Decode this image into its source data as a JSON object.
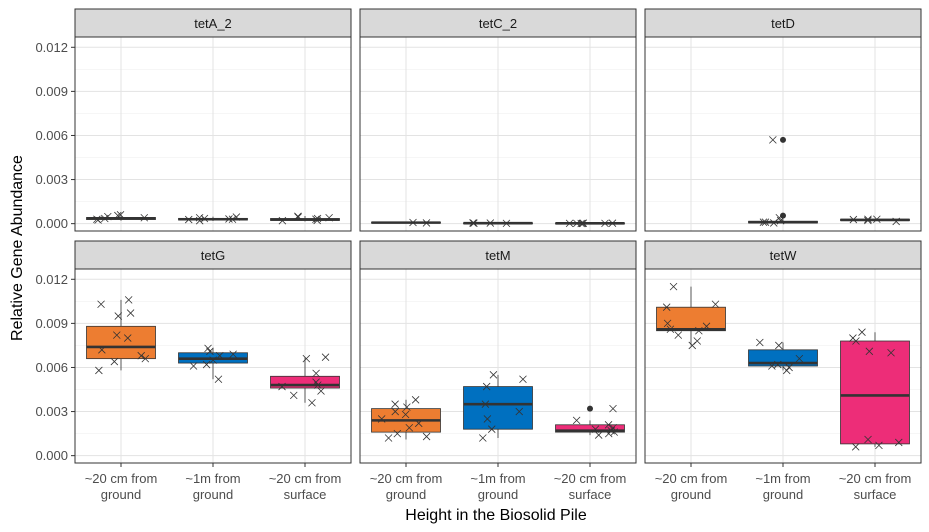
{
  "chart_data": {
    "type": "box",
    "xlabel": "Height in the Biosolid Pile",
    "ylabel": "Relative Gene Abundance",
    "categories": [
      "~20 cm from\nground",
      "~1m from\nground",
      "~20 cm from\nsurface"
    ],
    "ylim": [
      -0.0005,
      0.0127
    ],
    "yticks": [
      0.0,
      0.003,
      0.006,
      0.009,
      0.012
    ],
    "ytick_labels": [
      "0.000",
      "0.003",
      "0.006",
      "0.009",
      "0.012"
    ],
    "grid": true,
    "colors": {
      "~20 cm from ground": "#ed7d31",
      "~1m from ground": "#0070c0",
      "~20 cm from surface": "#ed2d78"
    },
    "panels": [
      {
        "name": "tetA_2",
        "boxes": [
          {
            "q1": 0.00028,
            "median": 0.00036,
            "q3": 0.00042,
            "whisker_low": 0.0002,
            "whisker_high": 0.0006,
            "outliers": []
          },
          {
            "q1": 0.00025,
            "median": 0.0003,
            "q3": 0.00036,
            "whisker_low": 0.00018,
            "whisker_high": 0.00048,
            "outliers": []
          },
          {
            "q1": 0.00022,
            "median": 0.00028,
            "q3": 0.00035,
            "whisker_low": 0.00015,
            "whisker_high": 0.00052,
            "outliers": []
          }
        ],
        "points": [
          [
            0.00055,
            0.0006,
            0.00048,
            0.0003,
            0.00035,
            0.00025,
            0.0004
          ],
          [
            0.0004,
            0.00035,
            0.00028,
            0.00045,
            0.00032,
            0.0002,
            0.0003
          ],
          [
            0.00045,
            0.0005,
            0.0003,
            0.00022,
            0.00035,
            0.0002,
            0.0004
          ]
        ]
      },
      {
        "name": "tetC_2",
        "boxes": [
          {
            "q1": 4e-05,
            "median": 7e-05,
            "q3": 0.0001,
            "whisker_low": 2e-05,
            "whisker_high": 0.00012,
            "outliers": []
          },
          {
            "q1": 1e-05,
            "median": 3e-05,
            "q3": 5e-05,
            "whisker_low": 0.0,
            "whisker_high": 8e-05,
            "outliers": []
          },
          {
            "q1": 1e-05,
            "median": 2e-05,
            "q3": 4e-05,
            "whisker_low": 0.0,
            "whisker_high": 6e-05,
            "outliers": []
          }
        ],
        "points": [
          [
            8e-05,
            5e-05
          ],
          [
            3e-05,
            4e-05,
            5e-05,
            2e-05
          ],
          [
            2e-05,
            3e-05,
            1e-05,
            2e-05,
            3e-05,
            2e-05,
            1e-05
          ]
        ]
      },
      {
        "name": "tetD",
        "boxes": [
          {
            "q1": null,
            "median": null,
            "q3": null,
            "whisker_low": null,
            "whisker_high": null,
            "outliers": []
          },
          {
            "q1": 5e-05,
            "median": 0.0001,
            "q3": 0.00016,
            "whisker_low": 0.0,
            "whisker_high": 0.0003,
            "outliers": [
              0.0057,
              0.00055
            ]
          },
          {
            "q1": 0.00021,
            "median": 0.00025,
            "q3": 0.0003,
            "whisker_low": 0.00018,
            "whisker_high": 0.0003,
            "outliers": []
          }
        ],
        "points": [
          [],
          [
            0.0057,
            0.0004,
            0.0002,
            0.0001,
            0.0001,
            5e-05
          ],
          [
            0.0003,
            0.00028,
            0.00022,
            0.0003,
            0.00015
          ]
        ]
      },
      {
        "name": "tetG",
        "boxes": [
          {
            "q1": 0.0066,
            "median": 0.0074,
            "q3": 0.0088,
            "whisker_low": 0.0058,
            "whisker_high": 0.0106,
            "outliers": []
          },
          {
            "q1": 0.0063,
            "median": 0.0066,
            "q3": 0.007,
            "whisker_low": 0.0052,
            "whisker_high": 0.0073,
            "outliers": []
          },
          {
            "q1": 0.0046,
            "median": 0.0048,
            "q3": 0.0054,
            "whisker_low": 0.0036,
            "whisker_high": 0.0067,
            "outliers": []
          }
        ],
        "points": [
          [
            0.0106,
            0.0103,
            0.0097,
            0.0095,
            0.0082,
            0.008,
            0.0072,
            0.0068,
            0.0066,
            0.0064,
            0.0058
          ],
          [
            0.0073,
            0.0071,
            0.0069,
            0.0068,
            0.0065,
            0.0062,
            0.0061,
            0.0052
          ],
          [
            0.0067,
            0.0066,
            0.0056,
            0.005,
            0.0048,
            0.0047,
            0.0044,
            0.0041,
            0.0036
          ]
        ]
      },
      {
        "name": "tetM",
        "boxes": [
          {
            "q1": 0.0016,
            "median": 0.0024,
            "q3": 0.0032,
            "whisker_low": 0.0011,
            "whisker_high": 0.0038,
            "outliers": []
          },
          {
            "q1": 0.0018,
            "median": 0.0035,
            "q3": 0.0047,
            "whisker_low": 0.0012,
            "whisker_high": 0.0055,
            "outliers": []
          },
          {
            "q1": 0.0016,
            "median": 0.0017,
            "q3": 0.0021,
            "whisker_low": 0.0014,
            "whisker_high": 0.0024,
            "outliers": [
              0.0032
            ]
          }
        ],
        "points": [
          [
            0.0038,
            0.0035,
            0.0033,
            0.003,
            0.0028,
            0.0025,
            0.0022,
            0.0019,
            0.0015,
            0.0013,
            0.0012
          ],
          [
            0.0055,
            0.0052,
            0.0047,
            0.0035,
            0.003,
            0.0025,
            0.0018,
            0.0012
          ],
          [
            0.0032,
            0.0024,
            0.0021,
            0.0019,
            0.0018,
            0.0017,
            0.0016,
            0.0015,
            0.0014
          ]
        ]
      },
      {
        "name": "tetW",
        "boxes": [
          {
            "q1": 0.0085,
            "median": 0.0086,
            "q3": 0.0101,
            "whisker_low": 0.0075,
            "whisker_high": 0.0115,
            "outliers": []
          },
          {
            "q1": 0.0061,
            "median": 0.0063,
            "q3": 0.0072,
            "whisker_low": 0.0058,
            "whisker_high": 0.0077,
            "outliers": []
          },
          {
            "q1": 0.0008,
            "median": 0.0041,
            "q3": 0.0078,
            "whisker_low": 0.0006,
            "whisker_high": 0.0084,
            "outliers": []
          }
        ],
        "points": [
          [
            0.0115,
            0.0103,
            0.0101,
            0.009,
            0.0088,
            0.0086,
            0.0085,
            0.0082,
            0.0078,
            0.0075
          ],
          [
            0.0077,
            0.0075,
            0.0066,
            0.0062,
            0.0061,
            0.006,
            0.0058
          ],
          [
            0.0084,
            0.008,
            0.0078,
            0.0071,
            0.007,
            0.0011,
            0.0009,
            0.0007,
            0.0006
          ]
        ]
      }
    ]
  }
}
